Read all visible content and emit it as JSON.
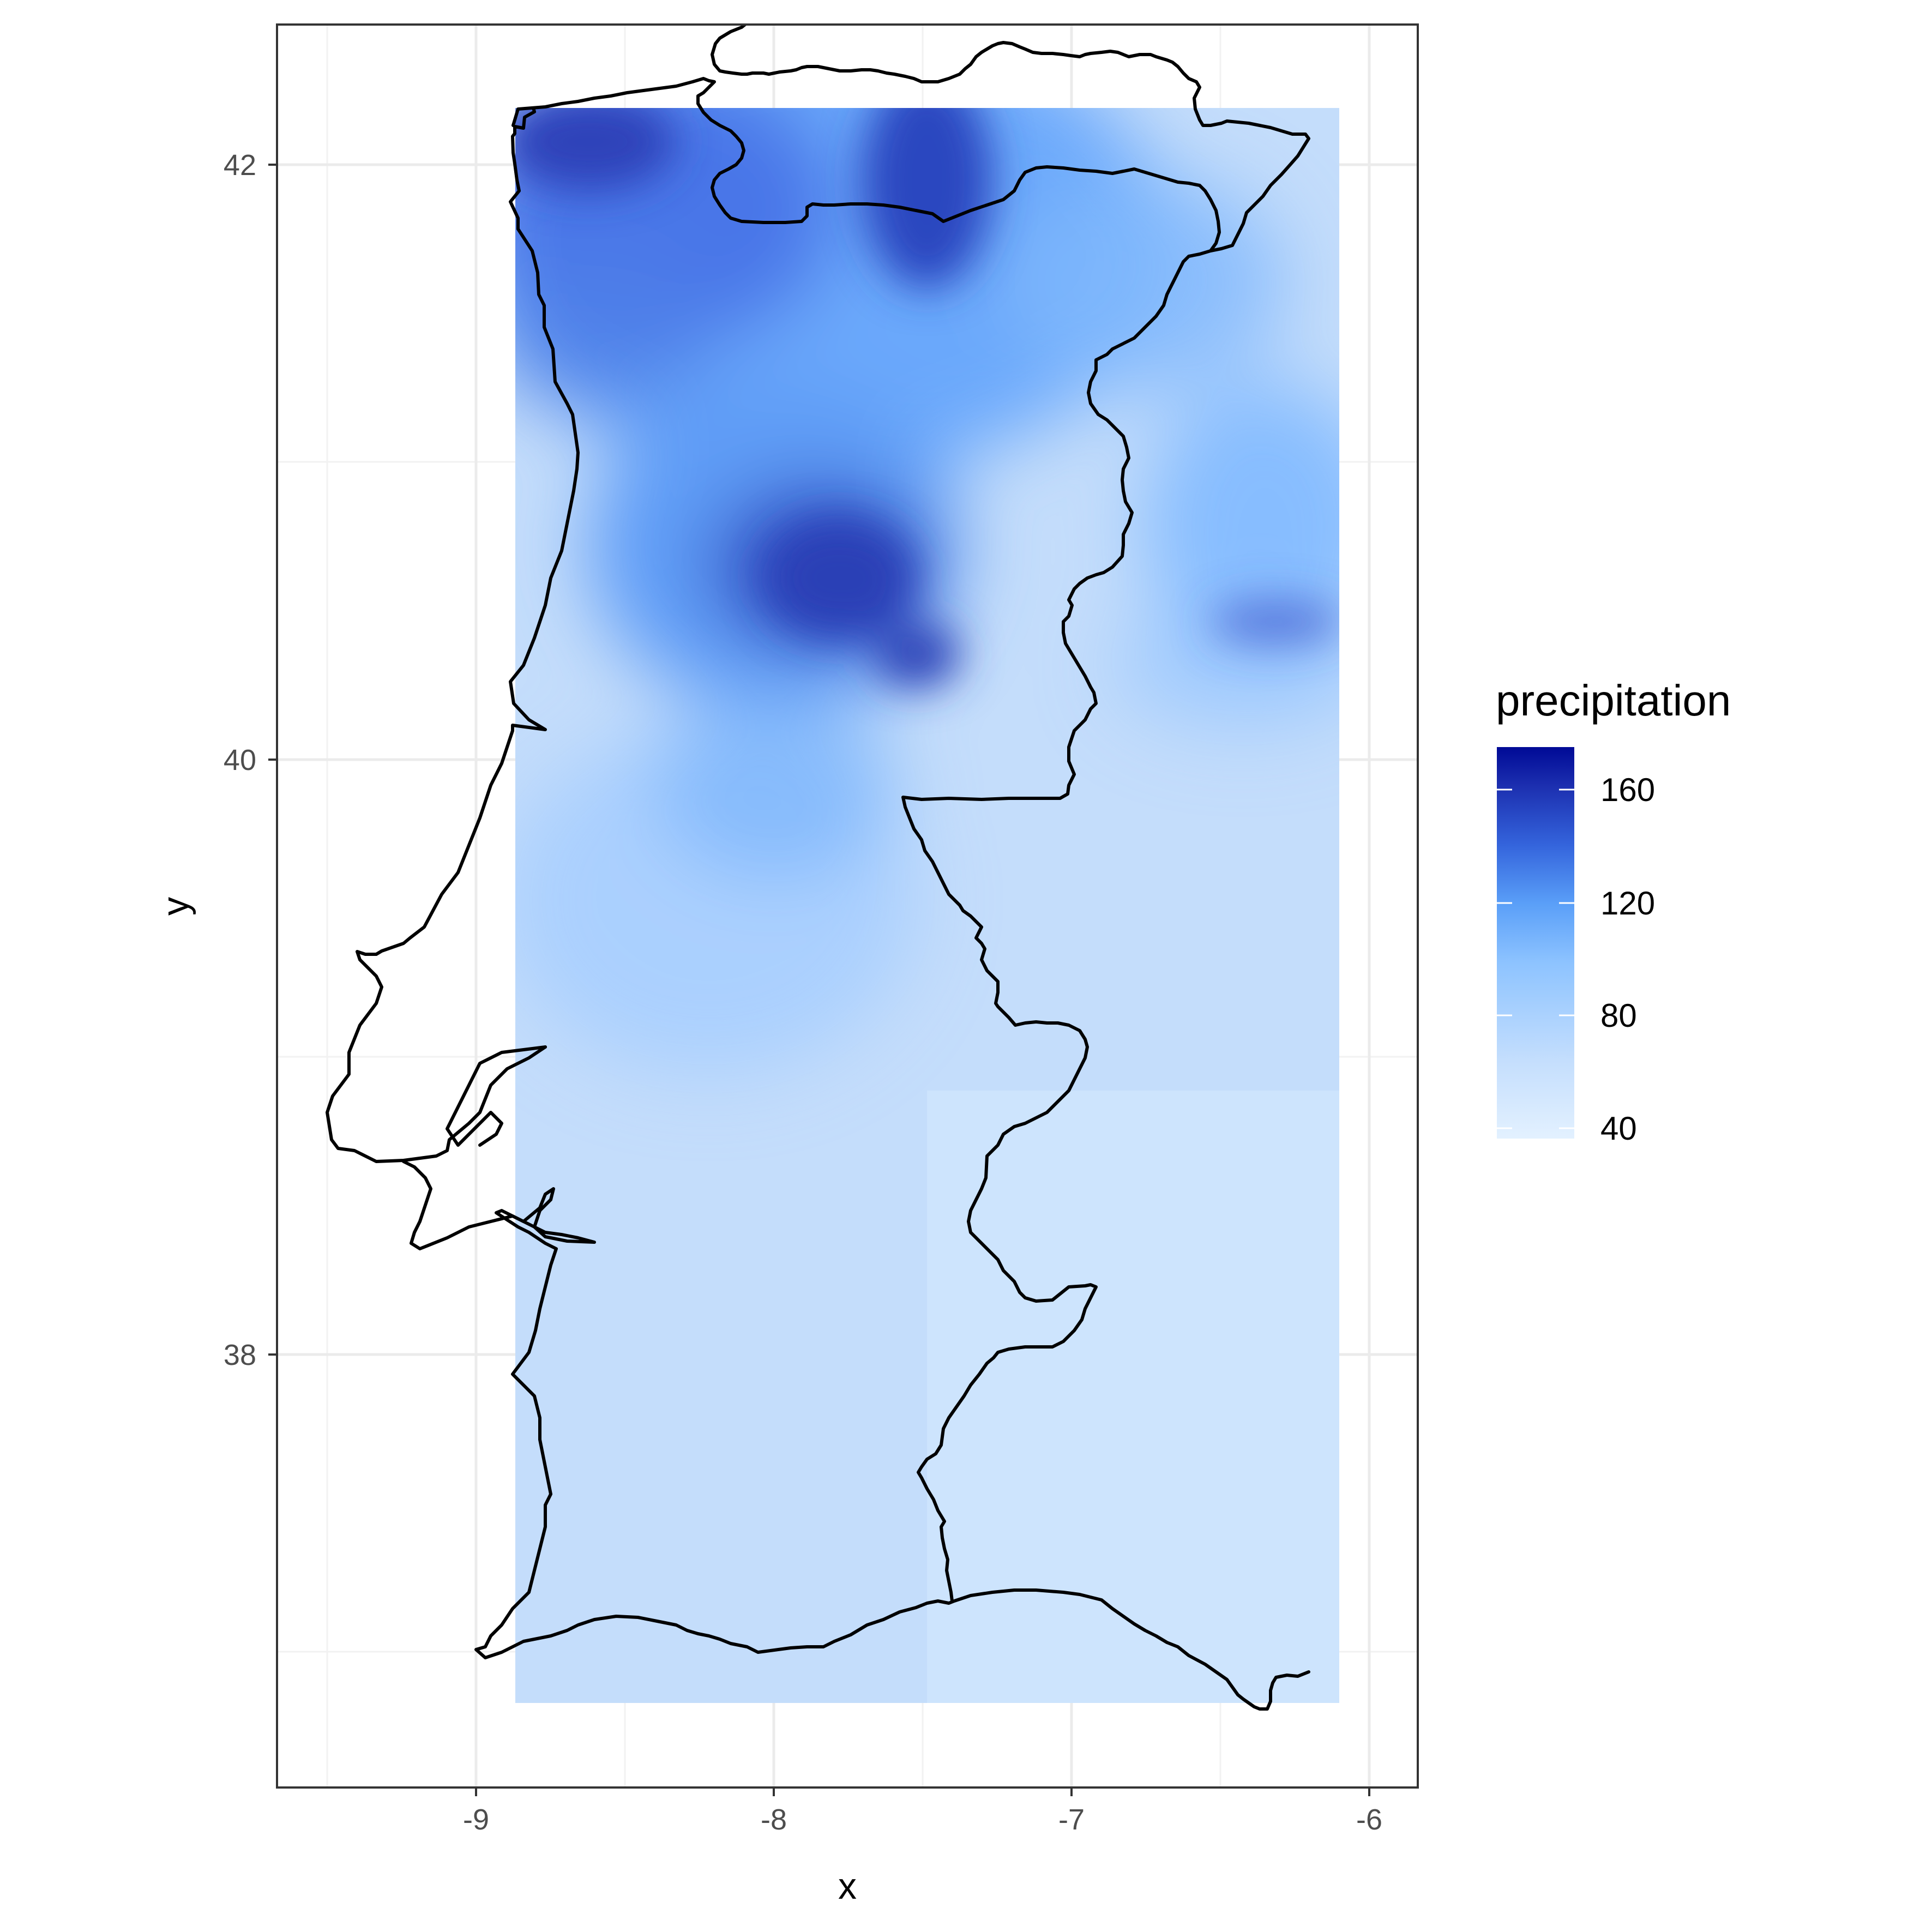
{
  "chart_data": {
    "type": "heatmap",
    "title": "",
    "xlabel": "x",
    "ylabel": "y",
    "xlim": [
      -9.66,
      -5.83
    ],
    "ylim": [
      35.3,
      42.53
    ],
    "x_ticks": [
      -9,
      -8,
      -7,
      -6
    ],
    "y_ticks": [
      38,
      40,
      42
    ],
    "x_tick_labels": [
      "-9",
      "-8",
      "-7",
      "-6"
    ],
    "y_tick_labels": [
      "38",
      "40",
      "42"
    ],
    "raster_extent": {
      "xmin": -9.5,
      "xmax": -6.1,
      "ymin": 36.0,
      "ymax": 42.2
    },
    "grid": true,
    "legend": {
      "title": "precipitation",
      "position": "right",
      "min": 36,
      "max": 178,
      "breaks": [
        40,
        80,
        120,
        160
      ],
      "break_labels": [
        "40",
        "80",
        "120",
        "160"
      ],
      "colors": [
        "#e3f1ff",
        "#99cbff",
        "#5ea8ff",
        "#3a6ee8",
        "#1d2fb0",
        "#000a96"
      ]
    },
    "boundary_color": "#000000",
    "background_color": "#c4ddfb"
  }
}
